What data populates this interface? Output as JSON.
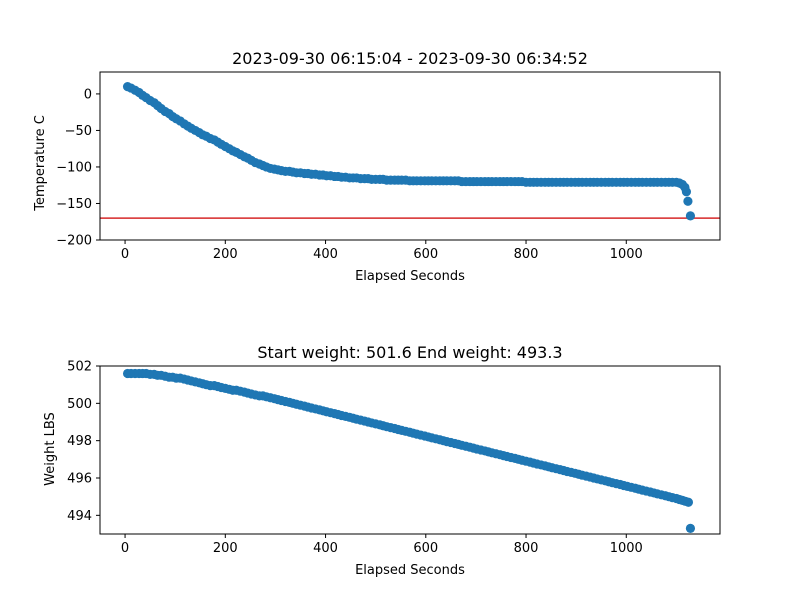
{
  "chart_data": [
    {
      "type": "scatter",
      "title": "2023-09-30 06:15:04 - 2023-09-30 06:34:52",
      "xlabel": "Elapsed Seconds",
      "ylabel": "Temperature C",
      "xlim": [
        -50,
        1187
      ],
      "ylim": [
        -200,
        30
      ],
      "xticks": [
        0,
        200,
        400,
        600,
        800,
        1000
      ],
      "yticks": [
        0,
        -50,
        -100,
        -150,
        -200
      ],
      "grid": false,
      "marker_color": "#1f77b4",
      "hline": {
        "y": -170,
        "color": "#d62728"
      },
      "points": [
        [
          5,
          10
        ],
        [
          12,
          8
        ],
        [
          20,
          5
        ],
        [
          28,
          2
        ],
        [
          35,
          -2
        ],
        [
          42,
          -5
        ],
        [
          50,
          -9
        ],
        [
          58,
          -12
        ],
        [
          65,
          -16
        ],
        [
          72,
          -20
        ],
        [
          80,
          -24
        ],
        [
          88,
          -27
        ],
        [
          95,
          -31
        ],
        [
          102,
          -34
        ],
        [
          110,
          -37
        ],
        [
          118,
          -41
        ],
        [
          125,
          -44
        ],
        [
          132,
          -47
        ],
        [
          140,
          -50
        ],
        [
          148,
          -53
        ],
        [
          155,
          -56
        ],
        [
          162,
          -58
        ],
        [
          170,
          -61
        ],
        [
          178,
          -63
        ],
        [
          185,
          -66
        ],
        [
          192,
          -69
        ],
        [
          200,
          -72
        ],
        [
          208,
          -75
        ],
        [
          215,
          -78
        ],
        [
          222,
          -80
        ],
        [
          230,
          -83
        ],
        [
          238,
          -86
        ],
        [
          245,
          -88
        ],
        [
          252,
          -91
        ],
        [
          260,
          -94
        ],
        [
          268,
          -96
        ],
        [
          275,
          -98
        ],
        [
          282,
          -100
        ],
        [
          290,
          -102
        ],
        [
          298,
          -103
        ],
        [
          305,
          -104
        ],
        [
          312,
          -105
        ],
        [
          320,
          -106
        ],
        [
          328,
          -106
        ],
        [
          335,
          -107
        ],
        [
          342,
          -108
        ],
        [
          350,
          -108
        ],
        [
          358,
          -109
        ],
        [
          365,
          -109
        ],
        [
          372,
          -110
        ],
        [
          380,
          -110
        ],
        [
          388,
          -111
        ],
        [
          395,
          -111
        ],
        [
          402,
          -112
        ],
        [
          410,
          -112
        ],
        [
          418,
          -113
        ],
        [
          425,
          -113
        ],
        [
          432,
          -114
        ],
        [
          440,
          -114
        ],
        [
          448,
          -115
        ],
        [
          455,
          -115
        ],
        [
          462,
          -115
        ],
        [
          470,
          -116
        ],
        [
          478,
          -116
        ],
        [
          485,
          -116
        ],
        [
          492,
          -117
        ],
        [
          500,
          -117
        ],
        [
          508,
          -117
        ],
        [
          515,
          -117
        ],
        [
          522,
          -118
        ],
        [
          530,
          -118
        ],
        [
          538,
          -118
        ],
        [
          545,
          -118
        ],
        [
          552,
          -118
        ],
        [
          560,
          -118
        ],
        [
          568,
          -119
        ],
        [
          575,
          -119
        ],
        [
          582,
          -119
        ],
        [
          590,
          -119
        ],
        [
          598,
          -119
        ],
        [
          605,
          -119
        ],
        [
          612,
          -119
        ],
        [
          620,
          -119
        ],
        [
          628,
          -119
        ],
        [
          635,
          -119
        ],
        [
          642,
          -119
        ],
        [
          650,
          -119
        ],
        [
          658,
          -119
        ],
        [
          665,
          -119
        ],
        [
          672,
          -120
        ],
        [
          680,
          -120
        ],
        [
          688,
          -120
        ],
        [
          695,
          -120
        ],
        [
          702,
          -120
        ],
        [
          710,
          -120
        ],
        [
          718,
          -120
        ],
        [
          725,
          -120
        ],
        [
          732,
          -120
        ],
        [
          740,
          -120
        ],
        [
          748,
          -120
        ],
        [
          755,
          -120
        ],
        [
          762,
          -120
        ],
        [
          770,
          -120
        ],
        [
          778,
          -120
        ],
        [
          785,
          -120
        ],
        [
          792,
          -120
        ],
        [
          800,
          -121
        ],
        [
          808,
          -121
        ],
        [
          815,
          -121
        ],
        [
          822,
          -121
        ],
        [
          830,
          -121
        ],
        [
          838,
          -121
        ],
        [
          845,
          -121
        ],
        [
          852,
          -121
        ],
        [
          860,
          -121
        ],
        [
          868,
          -121
        ],
        [
          875,
          -121
        ],
        [
          882,
          -121
        ],
        [
          890,
          -121
        ],
        [
          898,
          -121
        ],
        [
          905,
          -121
        ],
        [
          912,
          -121
        ],
        [
          920,
          -121
        ],
        [
          928,
          -121
        ],
        [
          935,
          -121
        ],
        [
          942,
          -121
        ],
        [
          950,
          -121
        ],
        [
          958,
          -121
        ],
        [
          965,
          -121
        ],
        [
          972,
          -121
        ],
        [
          980,
          -121
        ],
        [
          988,
          -121
        ],
        [
          995,
          -121
        ],
        [
          1002,
          -121
        ],
        [
          1010,
          -121
        ],
        [
          1018,
          -121
        ],
        [
          1025,
          -121
        ],
        [
          1032,
          -121
        ],
        [
          1040,
          -121
        ],
        [
          1048,
          -121
        ],
        [
          1055,
          -121
        ],
        [
          1062,
          -121
        ],
        [
          1070,
          -121
        ],
        [
          1078,
          -121
        ],
        [
          1085,
          -121
        ],
        [
          1092,
          -121
        ],
        [
          1100,
          -121
        ],
        [
          1106,
          -122
        ],
        [
          1112,
          -124
        ],
        [
          1117,
          -128
        ],
        [
          1120,
          -134
        ],
        [
          1123,
          -147
        ],
        [
          1128,
          -167
        ]
      ]
    },
    {
      "type": "scatter",
      "title": "Start weight: 501.6 End weight: 493.3",
      "xlabel": "Elapsed Seconds",
      "ylabel": "Weight LBS",
      "xlim": [
        -50,
        1187
      ],
      "ylim": [
        493,
        502
      ],
      "xticks": [
        0,
        200,
        400,
        600,
        800,
        1000
      ],
      "yticks": [
        494,
        496,
        498,
        500,
        502
      ],
      "grid": false,
      "marker_color": "#1f77b4",
      "points": [
        [
          5,
          501.6
        ],
        [
          12,
          501.6
        ],
        [
          20,
          501.6
        ],
        [
          28,
          501.6
        ],
        [
          35,
          501.6
        ],
        [
          42,
          501.6
        ],
        [
          50,
          501.55
        ],
        [
          58,
          501.55
        ],
        [
          65,
          501.5
        ],
        [
          72,
          501.5
        ],
        [
          80,
          501.45
        ],
        [
          88,
          501.4
        ],
        [
          95,
          501.4
        ],
        [
          102,
          501.35
        ],
        [
          110,
          501.35
        ],
        [
          118,
          501.3
        ],
        [
          125,
          501.25
        ],
        [
          132,
          501.2
        ],
        [
          140,
          501.15
        ],
        [
          148,
          501.1
        ],
        [
          155,
          501.05
        ],
        [
          162,
          501.0
        ],
        [
          170,
          500.95
        ],
        [
          178,
          500.95
        ],
        [
          185,
          500.9
        ],
        [
          192,
          500.85
        ],
        [
          200,
          500.8
        ],
        [
          208,
          500.75
        ],
        [
          215,
          500.7
        ],
        [
          222,
          500.7
        ],
        [
          230,
          500.65
        ],
        [
          238,
          500.6
        ],
        [
          245,
          500.55
        ],
        [
          252,
          500.5
        ],
        [
          260,
          500.45
        ],
        [
          268,
          500.4
        ],
        [
          275,
          500.4
        ],
        [
          282,
          500.35
        ],
        [
          290,
          500.3
        ],
        [
          298,
          500.25
        ],
        [
          305,
          500.2
        ],
        [
          312,
          500.15
        ],
        [
          320,
          500.1
        ],
        [
          328,
          500.05
        ],
        [
          335,
          500.0
        ],
        [
          342,
          499.95
        ],
        [
          350,
          499.9
        ],
        [
          358,
          499.85
        ],
        [
          365,
          499.8
        ],
        [
          372,
          499.75
        ],
        [
          380,
          499.7
        ],
        [
          388,
          499.65
        ],
        [
          395,
          499.6
        ],
        [
          402,
          499.55
        ],
        [
          410,
          499.5
        ],
        [
          418,
          499.45
        ],
        [
          425,
          499.4
        ],
        [
          432,
          499.35
        ],
        [
          440,
          499.3
        ],
        [
          448,
          499.25
        ],
        [
          455,
          499.2
        ],
        [
          462,
          499.15
        ],
        [
          470,
          499.1
        ],
        [
          478,
          499.05
        ],
        [
          485,
          499.0
        ],
        [
          492,
          498.95
        ],
        [
          500,
          498.9
        ],
        [
          508,
          498.85
        ],
        [
          515,
          498.8
        ],
        [
          522,
          498.75
        ],
        [
          530,
          498.7
        ],
        [
          538,
          498.65
        ],
        [
          545,
          498.6
        ],
        [
          552,
          498.55
        ],
        [
          560,
          498.5
        ],
        [
          568,
          498.45
        ],
        [
          575,
          498.4
        ],
        [
          582,
          498.35
        ],
        [
          590,
          498.3
        ],
        [
          598,
          498.25
        ],
        [
          605,
          498.2
        ],
        [
          612,
          498.15
        ],
        [
          620,
          498.1
        ],
        [
          628,
          498.05
        ],
        [
          635,
          498.0
        ],
        [
          642,
          497.95
        ],
        [
          650,
          497.9
        ],
        [
          658,
          497.85
        ],
        [
          665,
          497.8
        ],
        [
          672,
          497.75
        ],
        [
          680,
          497.7
        ],
        [
          688,
          497.65
        ],
        [
          695,
          497.6
        ],
        [
          702,
          497.55
        ],
        [
          710,
          497.5
        ],
        [
          718,
          497.45
        ],
        [
          725,
          497.4
        ],
        [
          732,
          497.35
        ],
        [
          740,
          497.3
        ],
        [
          748,
          497.25
        ],
        [
          755,
          497.2
        ],
        [
          762,
          497.15
        ],
        [
          770,
          497.1
        ],
        [
          778,
          497.05
        ],
        [
          785,
          497.0
        ],
        [
          792,
          496.95
        ],
        [
          800,
          496.9
        ],
        [
          808,
          496.85
        ],
        [
          815,
          496.8
        ],
        [
          822,
          496.75
        ],
        [
          830,
          496.7
        ],
        [
          838,
          496.65
        ],
        [
          845,
          496.6
        ],
        [
          852,
          496.55
        ],
        [
          860,
          496.5
        ],
        [
          868,
          496.45
        ],
        [
          875,
          496.4
        ],
        [
          882,
          496.35
        ],
        [
          890,
          496.3
        ],
        [
          898,
          496.25
        ],
        [
          905,
          496.2
        ],
        [
          912,
          496.15
        ],
        [
          920,
          496.1
        ],
        [
          928,
          496.05
        ],
        [
          935,
          496.0
        ],
        [
          942,
          495.95
        ],
        [
          950,
          495.9
        ],
        [
          958,
          495.85
        ],
        [
          965,
          495.8
        ],
        [
          972,
          495.75
        ],
        [
          980,
          495.7
        ],
        [
          988,
          495.65
        ],
        [
          995,
          495.6
        ],
        [
          1002,
          495.55
        ],
        [
          1010,
          495.5
        ],
        [
          1018,
          495.45
        ],
        [
          1025,
          495.4
        ],
        [
          1032,
          495.35
        ],
        [
          1040,
          495.3
        ],
        [
          1048,
          495.25
        ],
        [
          1055,
          495.2
        ],
        [
          1062,
          495.15
        ],
        [
          1070,
          495.1
        ],
        [
          1078,
          495.05
        ],
        [
          1085,
          495.0
        ],
        [
          1092,
          494.95
        ],
        [
          1100,
          494.9
        ],
        [
          1106,
          494.85
        ],
        [
          1112,
          494.8
        ],
        [
          1118,
          494.75
        ],
        [
          1124,
          494.7
        ],
        [
          1128,
          493.3
        ]
      ]
    }
  ]
}
